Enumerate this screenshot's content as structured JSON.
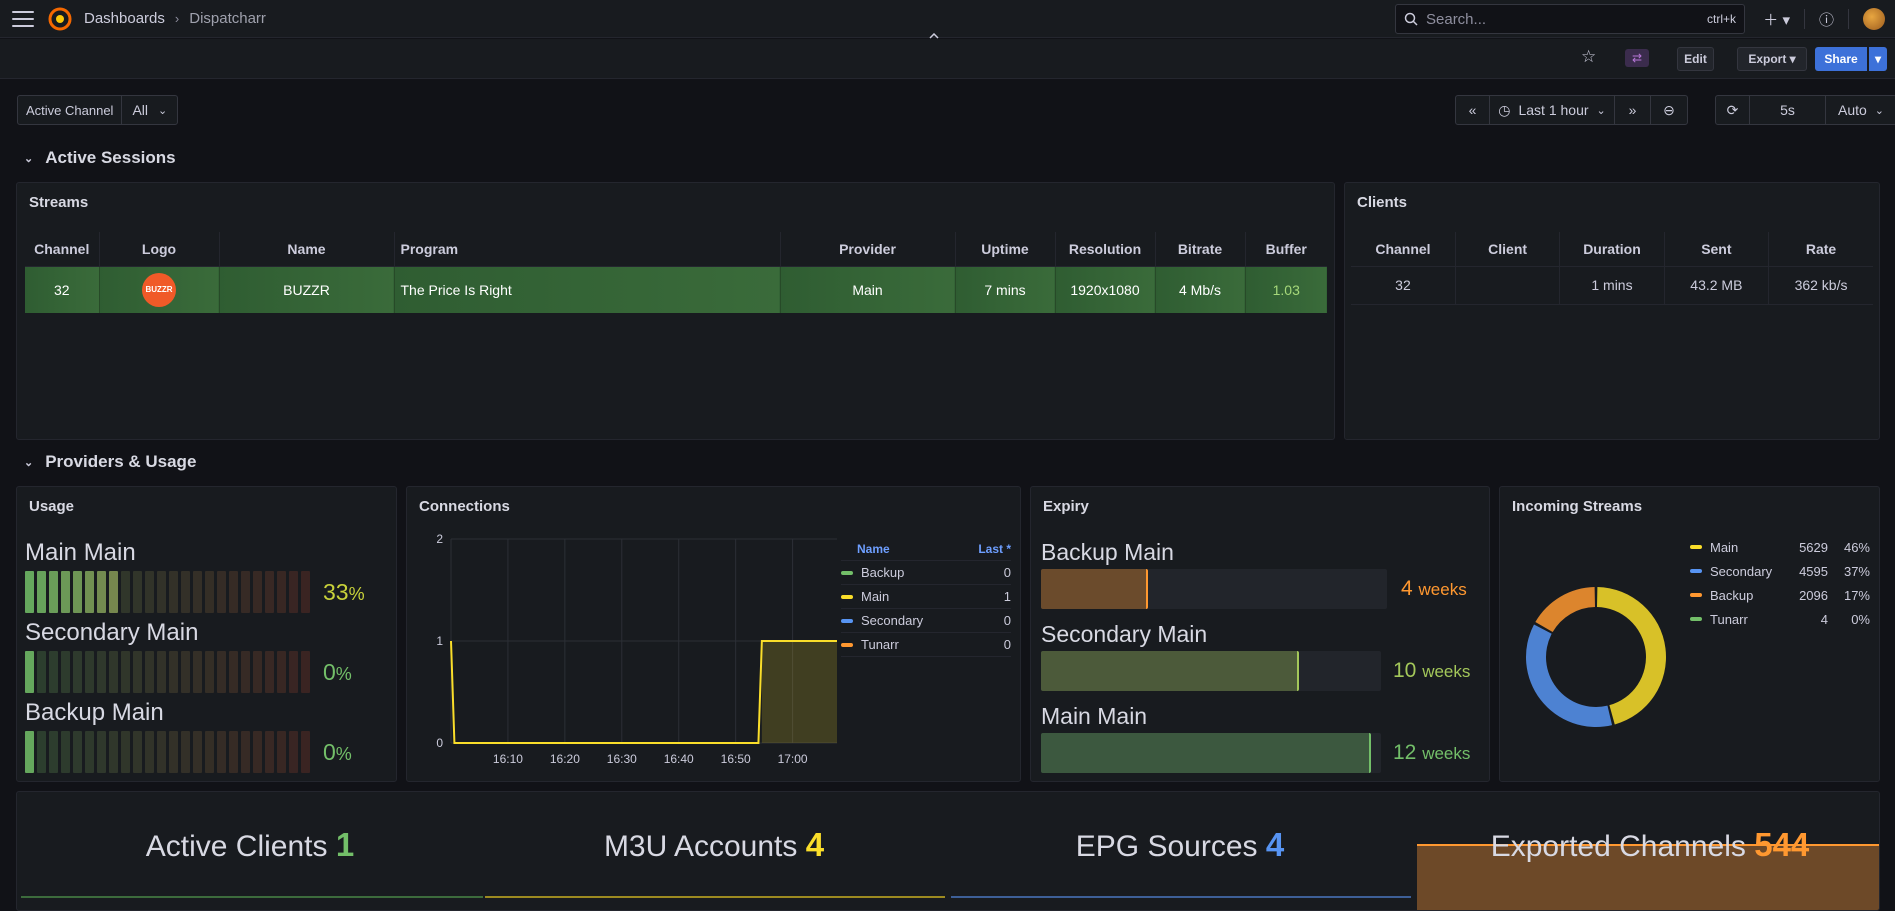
{
  "topbar": {
    "breadcrumb_root": "Dashboards",
    "breadcrumb_current": "Dispatcharr",
    "search_placeholder": "Search...",
    "search_shortcut": "ctrl+k"
  },
  "toolbar": {
    "edit": "Edit",
    "export": "Export",
    "share": "Share"
  },
  "variables": {
    "label": "Active Channel",
    "value": "All"
  },
  "timepicker": {
    "range": "Last 1 hour",
    "refresh": "5s",
    "auto": "Auto"
  },
  "rows": {
    "sessions": "Active Sessions",
    "providers": "Providers & Usage"
  },
  "streams": {
    "title": "Streams",
    "columns": [
      "Channel",
      "Logo",
      "Name",
      "Program",
      "Provider",
      "Uptime",
      "Resolution",
      "Bitrate",
      "Buffer"
    ],
    "row": {
      "channel": "32",
      "logo_text": "BUZZR",
      "name": "BUZZR",
      "program": "The Price Is Right",
      "provider": "Main",
      "uptime": "7 mins",
      "resolution": "1920x1080",
      "bitrate": "4 Mb/s",
      "buffer": "1.03"
    }
  },
  "clients": {
    "title": "Clients",
    "columns": [
      "Channel",
      "Client",
      "Duration",
      "Sent",
      "Rate"
    ],
    "row": {
      "channel": "32",
      "client": "",
      "duration": "1 mins",
      "sent": "43.2 MB",
      "rate": "362 kb/s"
    }
  },
  "usage": {
    "title": "Usage",
    "items": [
      {
        "label": "Main Main",
        "value": 33,
        "unit": "%"
      },
      {
        "label": "Secondary Main",
        "value": 0,
        "unit": "%"
      },
      {
        "label": "Backup Main",
        "value": 0,
        "unit": "%"
      }
    ]
  },
  "connections": {
    "title": "Connections",
    "legend_header_name": "Name",
    "legend_header_last": "Last *",
    "legend": [
      {
        "name": "Backup",
        "last": "0",
        "color": "#73bf69"
      },
      {
        "name": "Main",
        "last": "1",
        "color": "#fade2a"
      },
      {
        "name": "Secondary",
        "last": "0",
        "color": "#5794f2"
      },
      {
        "name": "Tunarr",
        "last": "0",
        "color": "#ff9830"
      }
    ]
  },
  "chart_data": {
    "type": "line",
    "x": [
      "16:10",
      "16:20",
      "16:30",
      "16:40",
      "16:50",
      "17:00"
    ],
    "ylim": [
      0,
      2
    ],
    "yticks": [
      "0",
      "1",
      "2"
    ],
    "series": [
      {
        "name": "Main",
        "color": "#fade2a",
        "points": [
          [
            16.0,
            1
          ],
          [
            16.01,
            0
          ],
          [
            16.9,
            0
          ],
          [
            16.91,
            1
          ],
          [
            17.13,
            1
          ]
        ]
      }
    ]
  },
  "expiry": {
    "title": "Expiry",
    "items": [
      {
        "label": "Backup Main",
        "value": "4",
        "unit": "weeks",
        "fraction": 0.31,
        "color": "#ff9830"
      },
      {
        "label": "Secondary Main",
        "value": "10",
        "unit": "weeks",
        "fraction": 0.76,
        "color": "#a3c75a"
      },
      {
        "label": "Main Main",
        "value": "12",
        "unit": "weeks",
        "fraction": 0.97,
        "color": "#73bf69"
      }
    ]
  },
  "incoming": {
    "title": "Incoming Streams",
    "items": [
      {
        "name": "Main",
        "value": "5629",
        "pct": "46%",
        "color": "#fade2a",
        "fraction": 0.46
      },
      {
        "name": "Secondary",
        "value": "4595",
        "pct": "37%",
        "color": "#5794f2",
        "fraction": 0.37
      },
      {
        "name": "Backup",
        "value": "2096",
        "pct": "17%",
        "color": "#ff9830",
        "fraction": 0.17
      },
      {
        "name": "Tunarr",
        "value": "4",
        "pct": "0%",
        "color": "#73bf69",
        "fraction": 0.0
      }
    ]
  },
  "stats": [
    {
      "label": "Active Clients",
      "value": "1",
      "color": "#73bf69"
    },
    {
      "label": "M3U Accounts",
      "value": "4",
      "color": "#fade2a"
    },
    {
      "label": "EPG Sources",
      "value": "4",
      "color": "#5794f2"
    },
    {
      "label": "Exported Channels",
      "value": "544",
      "color": "#ff9830"
    }
  ]
}
